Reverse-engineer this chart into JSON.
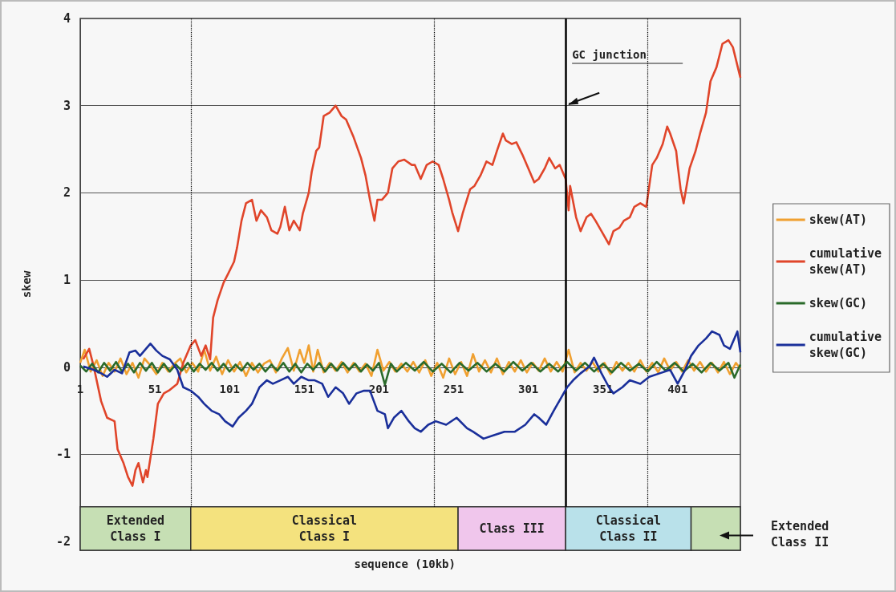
{
  "chart_data": {
    "type": "line",
    "xlabel": "sequence (10kb)",
    "ylabel": "skew",
    "xlim": [
      1,
      443
    ],
    "xticks": [
      1,
      51,
      101,
      151,
      201,
      251,
      301,
      351,
      401
    ],
    "ylim": [
      -2.1,
      4
    ],
    "yticks": [
      -2,
      -1,
      0,
      1,
      2,
      3,
      4
    ],
    "grid": "y",
    "legend": "right",
    "marker": "none",
    "series": [
      {
        "name": "skew(AT)",
        "color": "#f0a030",
        "x": [
          1,
          4,
          8,
          12,
          16,
          20,
          24,
          28,
          32,
          36,
          40,
          44,
          48,
          52,
          56,
          60,
          64,
          68,
          72,
          76,
          80,
          84,
          88,
          92,
          96,
          100,
          104,
          108,
          112,
          116,
          120,
          124,
          128,
          132,
          136,
          140,
          144,
          148,
          151,
          154,
          157,
          160,
          164,
          168,
          172,
          176,
          180,
          184,
          188,
          192,
          196,
          200,
          204,
          208,
          212,
          216,
          220,
          224,
          228,
          232,
          236,
          240,
          244,
          248,
          252,
          256,
          260,
          264,
          268,
          272,
          276,
          280,
          284,
          288,
          292,
          296,
          300,
          304,
          308,
          312,
          316,
          320,
          324,
          328,
          332,
          336,
          340,
          344,
          348,
          352,
          356,
          360,
          364,
          368,
          372,
          376,
          380,
          384,
          388,
          392,
          396,
          400,
          404,
          408,
          412,
          416,
          420,
          424,
          428,
          432,
          436,
          440,
          443
        ],
        "values": [
          0.05,
          0.2,
          -0.05,
          0.08,
          -0.1,
          0.05,
          -0.05,
          0.1,
          -0.08,
          0.05,
          -0.12,
          0.1,
          0.02,
          -0.08,
          0.05,
          -0.05,
          0.04,
          0.1,
          -0.06,
          0.05,
          -0.05,
          0.2,
          -0.04,
          0.12,
          -0.08,
          0.08,
          -0.05,
          0.06,
          -0.1,
          0.05,
          -0.06,
          0.04,
          0.08,
          -0.06,
          0.1,
          0.22,
          -0.04,
          0.2,
          0.05,
          0.25,
          -0.05,
          0.2,
          -0.06,
          0.05,
          -0.04,
          0.06,
          -0.06,
          0.05,
          -0.05,
          0.04,
          -0.1,
          0.2,
          -0.04,
          0.06,
          -0.05,
          0.04,
          -0.05,
          0.06,
          -0.06,
          0.08,
          -0.1,
          0.05,
          -0.12,
          0.1,
          -0.08,
          0.06,
          -0.1,
          0.15,
          -0.05,
          0.08,
          -0.06,
          0.1,
          -0.08,
          0.06,
          -0.05,
          0.08,
          -0.06,
          0.05,
          -0.04,
          0.1,
          -0.05,
          0.06,
          -0.05,
          0.2,
          -0.06,
          0.05,
          -0.04,
          0.06,
          -0.05,
          0.05,
          -0.08,
          0.06,
          -0.04,
          0.05,
          -0.05,
          0.08,
          -0.05,
          0.05,
          -0.06,
          0.1,
          -0.04,
          0.06,
          -0.05,
          0.08,
          -0.04,
          0.06,
          -0.05,
          0.05,
          -0.06,
          0.06,
          -0.08,
          0.05,
          -0.02
        ]
      },
      {
        "name": "cumulative skew(AT)",
        "color": "#e0452a",
        "x": [
          3,
          7,
          10,
          15,
          19,
          24,
          26,
          30,
          33,
          36,
          38,
          40,
          43,
          45,
          46,
          50,
          53,
          57,
          61,
          66,
          70,
          75,
          78,
          82,
          85,
          88,
          90,
          93,
          97,
          100,
          104,
          106,
          109,
          112,
          116,
          119,
          122,
          126,
          129,
          133,
          135,
          138,
          141,
          144,
          148,
          150,
          154,
          156,
          159,
          161,
          164,
          168,
          172,
          176,
          179,
          184,
          189,
          192,
          195,
          198,
          200,
          203,
          207,
          210,
          214,
          218,
          223,
          225,
          229,
          233,
          237,
          241,
          244,
          248,
          250,
          254,
          257,
          262,
          265,
          269,
          273,
          277,
          280,
          284,
          286,
          290,
          293,
          297,
          300,
          305,
          308,
          312,
          315,
          319,
          322,
          326,
          328,
          329,
          333,
          336,
          340,
          343,
          346,
          350,
          355,
          358,
          362,
          365,
          369,
          372,
          376,
          380,
          384,
          387,
          391,
          394,
          396,
          400,
          401,
          403,
          405,
          407,
          409,
          413,
          416,
          420,
          423,
          427,
          431,
          435,
          438,
          443
        ],
        "values": [
          0.09,
          0.21,
          0.01,
          -0.39,
          -0.58,
          -0.62,
          -0.94,
          -1.1,
          -1.26,
          -1.36,
          -1.18,
          -1.1,
          -1.32,
          -1.18,
          -1.26,
          -0.82,
          -0.42,
          -0.3,
          -0.26,
          -0.19,
          0.05,
          0.25,
          0.31,
          0.13,
          0.25,
          0.09,
          0.57,
          0.77,
          0.97,
          1.07,
          1.21,
          1.37,
          1.68,
          1.88,
          1.92,
          1.68,
          1.8,
          1.72,
          1.57,
          1.53,
          1.61,
          1.84,
          1.57,
          1.68,
          1.57,
          1.76,
          2.0,
          2.24,
          2.48,
          2.52,
          2.88,
          2.92,
          3.0,
          2.88,
          2.84,
          2.64,
          2.4,
          2.2,
          1.92,
          1.68,
          1.92,
          1.92,
          2.0,
          2.28,
          2.36,
          2.38,
          2.32,
          2.32,
          2.16,
          2.32,
          2.36,
          2.32,
          2.16,
          1.92,
          1.78,
          1.56,
          1.76,
          2.04,
          2.08,
          2.2,
          2.36,
          2.32,
          2.48,
          2.68,
          2.6,
          2.56,
          2.58,
          2.44,
          2.32,
          2.12,
          2.16,
          2.28,
          2.4,
          2.28,
          2.32,
          2.16,
          1.8,
          2.08,
          1.72,
          1.56,
          1.72,
          1.76,
          1.68,
          1.56,
          1.41,
          1.56,
          1.6,
          1.68,
          1.72,
          1.84,
          1.88,
          1.84,
          2.32,
          2.4,
          2.56,
          2.76,
          2.68,
          2.48,
          2.32,
          2.04,
          1.88,
          2.08,
          2.28,
          2.48,
          2.68,
          2.92,
          3.28,
          3.44,
          3.71,
          3.75,
          3.67,
          3.32
        ]
      },
      {
        "name": "skew(GC)",
        "color": "#2a6a2a",
        "x": [
          1,
          5,
          9,
          13,
          17,
          21,
          25,
          29,
          33,
          37,
          41,
          45,
          49,
          53,
          57,
          61,
          65,
          69,
          73,
          77,
          81,
          85,
          89,
          93,
          97,
          101,
          105,
          109,
          113,
          117,
          121,
          125,
          129,
          133,
          137,
          141,
          145,
          149,
          153,
          157,
          161,
          165,
          169,
          173,
          177,
          181,
          185,
          189,
          193,
          197,
          201,
          205,
          209,
          213,
          219,
          225,
          231,
          237,
          243,
          249,
          255,
          261,
          267,
          273,
          279,
          285,
          291,
          297,
          303,
          309,
          315,
          321,
          327,
          333,
          339,
          345,
          351,
          357,
          363,
          369,
          375,
          381,
          387,
          393,
          399,
          405,
          411,
          417,
          423,
          429,
          435,
          439,
          443
        ],
        "values": [
          0.02,
          -0.05,
          0.04,
          -0.06,
          0.05,
          -0.04,
          0.06,
          -0.05,
          0.04,
          -0.06,
          0.05,
          -0.04,
          0.05,
          -0.06,
          0.04,
          -0.05,
          0.03,
          -0.04,
          0.05,
          -0.05,
          0.04,
          -0.03,
          0.05,
          -0.04,
          0.04,
          -0.05,
          0.03,
          -0.04,
          0.05,
          -0.03,
          0.04,
          -0.05,
          0.03,
          -0.04,
          0.05,
          -0.05,
          0.04,
          -0.06,
          0.04,
          -0.03,
          0.05,
          -0.05,
          0.04,
          -0.04,
          0.05,
          -0.03,
          0.04,
          -0.05,
          0.03,
          -0.04,
          0.05,
          -0.2,
          0.04,
          -0.05,
          0.05,
          -0.04,
          0.06,
          -0.05,
          0.04,
          -0.06,
          0.05,
          -0.04,
          0.05,
          -0.05,
          0.04,
          -0.05,
          0.06,
          -0.04,
          0.05,
          -0.05,
          0.04,
          -0.05,
          0.06,
          -0.04,
          0.05,
          -0.05,
          0.04,
          -0.06,
          0.05,
          -0.04,
          0.04,
          -0.05,
          0.06,
          -0.04,
          0.05,
          -0.05,
          0.04,
          -0.06,
          0.05,
          -0.04,
          0.05,
          -0.12,
          0.03
        ]
      },
      {
        "name": "cumulative skew(GC)",
        "color": "#1a2f9a",
        "x": [
          3,
          10,
          15,
          19,
          24,
          29,
          34,
          38,
          41,
          45,
          48,
          52,
          56,
          61,
          66,
          70,
          75,
          80,
          84,
          89,
          94,
          98,
          103,
          107,
          112,
          116,
          121,
          126,
          130,
          135,
          140,
          144,
          149,
          154,
          158,
          163,
          167,
          172,
          177,
          181,
          186,
          191,
          195,
          200,
          205,
          207,
          211,
          216,
          221,
          225,
          229,
          234,
          239,
          246,
          253,
          260,
          264,
          271,
          278,
          285,
          292,
          299,
          305,
          308,
          313,
          318,
          322,
          327,
          331,
          336,
          342,
          345,
          350,
          355,
          358,
          364,
          369,
          376,
          382,
          389,
          396,
          401,
          406,
          410,
          415,
          420,
          424,
          429,
          432,
          436,
          441,
          443
        ],
        "values": [
          0.01,
          -0.03,
          -0.07,
          -0.11,
          -0.03,
          -0.07,
          0.17,
          0.19,
          0.13,
          0.21,
          0.27,
          0.19,
          0.13,
          0.09,
          -0.03,
          -0.23,
          -0.27,
          -0.34,
          -0.42,
          -0.5,
          -0.54,
          -0.62,
          -0.68,
          -0.58,
          -0.5,
          -0.42,
          -0.23,
          -0.15,
          -0.19,
          -0.15,
          -0.11,
          -0.19,
          -0.11,
          -0.15,
          -0.15,
          -0.19,
          -0.34,
          -0.23,
          -0.3,
          -0.42,
          -0.3,
          -0.27,
          -0.27,
          -0.5,
          -0.54,
          -0.7,
          -0.58,
          -0.5,
          -0.62,
          -0.7,
          -0.74,
          -0.66,
          -0.62,
          -0.66,
          -0.58,
          -0.7,
          -0.74,
          -0.82,
          -0.78,
          -0.74,
          -0.74,
          -0.66,
          -0.54,
          -0.58,
          -0.66,
          -0.5,
          -0.38,
          -0.23,
          -0.15,
          -0.07,
          0.01,
          0.11,
          -0.07,
          -0.23,
          -0.3,
          -0.23,
          -0.15,
          -0.19,
          -0.11,
          -0.07,
          -0.03,
          -0.19,
          -0.03,
          0.13,
          0.25,
          0.33,
          0.41,
          0.37,
          0.25,
          0.21,
          0.41,
          0.17
        ]
      }
    ],
    "ref_lines": [
      {
        "axis": "x",
        "value": 75,
        "line_style": "dotted",
        "color": "#000000"
      },
      {
        "axis": "x",
        "value": 238,
        "line_style": "dotted",
        "color": "#000000"
      },
      {
        "axis": "x",
        "value": 326,
        "label": "GC junction",
        "line_style": "solid",
        "color": "#000000"
      },
      {
        "axis": "x",
        "value": 381,
        "line_style": "dotted",
        "color": "#000000"
      }
    ],
    "bands": [
      {
        "axis": "x",
        "from": 1,
        "to": 75,
        "label": "Extended Class I",
        "color": "#c6dfb4"
      },
      {
        "axis": "x",
        "from": 75,
        "to": 254,
        "label": "Classical Class I",
        "color": "#f4e27e"
      },
      {
        "axis": "x",
        "from": 254,
        "to": 326,
        "label": "Class III",
        "color": "#f0c6ec"
      },
      {
        "axis": "x",
        "from": 326,
        "to": 410,
        "label": "Classical Class II",
        "color": "#b9e1ea"
      },
      {
        "axis": "x",
        "from": 410,
        "to": 443,
        "label": "Extended Class II",
        "color": "#c6dfb4"
      }
    ]
  }
}
